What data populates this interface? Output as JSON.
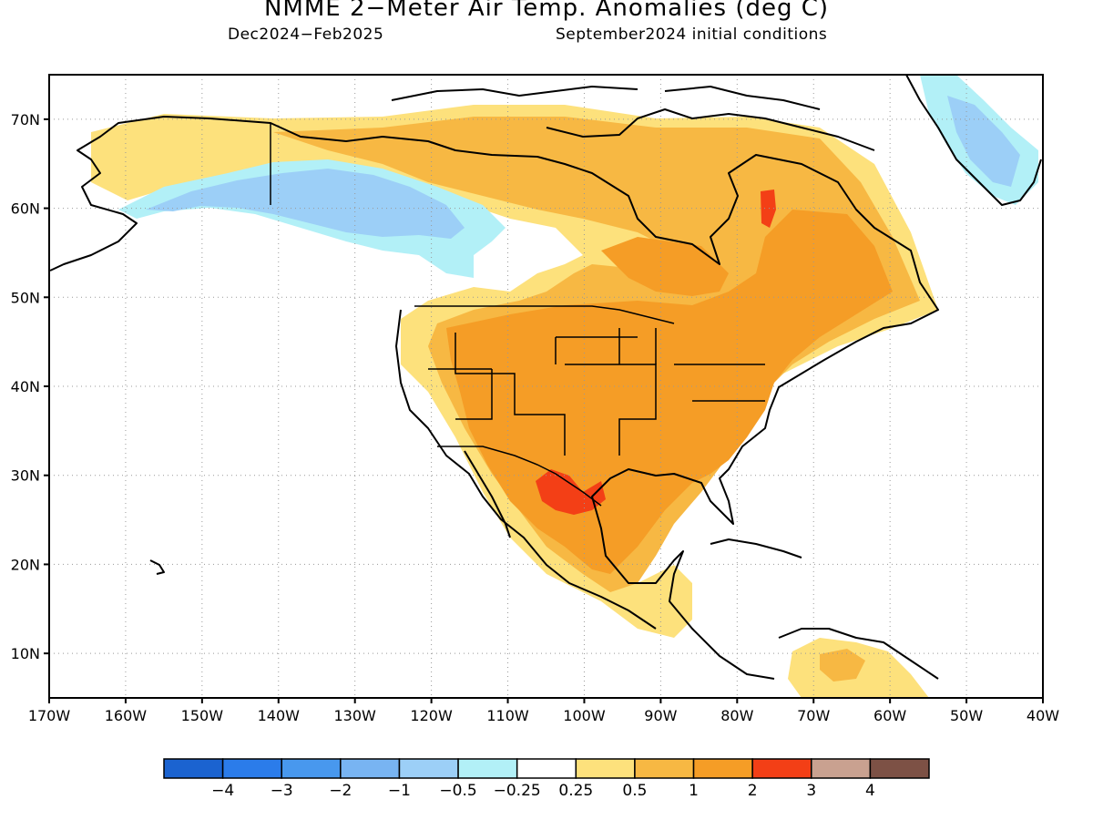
{
  "title": "NMME 2−Meter Air Temp. Anomalies (deg C)",
  "subtitle_left": "Dec2024−Feb2025",
  "subtitle_right": "September2024 initial conditions",
  "map": {
    "projection": "cylindrical equidistant",
    "lon_range": [
      -170,
      -40
    ],
    "lat_range": [
      5,
      75
    ],
    "grid": "dotted",
    "lat_ticks": [
      {
        "value": 70,
        "label": "70N"
      },
      {
        "value": 60,
        "label": "60N"
      },
      {
        "value": 50,
        "label": "50N"
      },
      {
        "value": 40,
        "label": "40N"
      },
      {
        "value": 30,
        "label": "30N"
      },
      {
        "value": 20,
        "label": "20N"
      },
      {
        "value": 10,
        "label": "10N"
      }
    ],
    "lon_ticks": [
      {
        "value": -170,
        "label": "170W"
      },
      {
        "value": -160,
        "label": "160W"
      },
      {
        "value": -150,
        "label": "150W"
      },
      {
        "value": -140,
        "label": "140W"
      },
      {
        "value": -130,
        "label": "130W"
      },
      {
        "value": -120,
        "label": "120W"
      },
      {
        "value": -110,
        "label": "110W"
      },
      {
        "value": -100,
        "label": "100W"
      },
      {
        "value": -90,
        "label": "90W"
      },
      {
        "value": -80,
        "label": "80W"
      },
      {
        "value": -70,
        "label": "70W"
      },
      {
        "value": -60,
        "label": "60W"
      },
      {
        "value": -50,
        "label": "50W"
      },
      {
        "value": -40,
        "label": "40W"
      }
    ],
    "anomaly_regions": [
      {
        "region": "Alaska and northern Canada",
        "category": "0.25 to 0.5"
      },
      {
        "region": "Yukon / northern British Columbia",
        "category": "-1 to -0.5"
      },
      {
        "region": "Western Canada",
        "category": "-0.5 to -0.25"
      },
      {
        "region": "Contiguous United States",
        "category": "1 to 2"
      },
      {
        "region": "Eastern Canada",
        "category": "1 to 2"
      },
      {
        "region": "West Texas / northern Mexico",
        "category": "2 to 3"
      },
      {
        "region": "Labrador",
        "category": "2 to 3"
      },
      {
        "region": "Greenland east coast",
        "category": "-0.5 to -0.25"
      },
      {
        "region": "Central America and northern South America",
        "category": "0.25 to 1"
      }
    ]
  },
  "colorbar": {
    "colors": [
      "#1b63d0",
      "#2b7cea",
      "#4898ee",
      "#78b4f2",
      "#9ccff7",
      "#b2f0f7",
      "#ffffff",
      "#fde17c",
      "#f7b843",
      "#f59d26",
      "#f33f16",
      "#c9a190",
      "#7d5145"
    ],
    "labels": [
      "−4",
      "−3",
      "−2",
      "−1",
      "−0.5",
      "−0.25",
      "0.25",
      "0.5",
      "1",
      "2",
      "3",
      "4"
    ]
  }
}
